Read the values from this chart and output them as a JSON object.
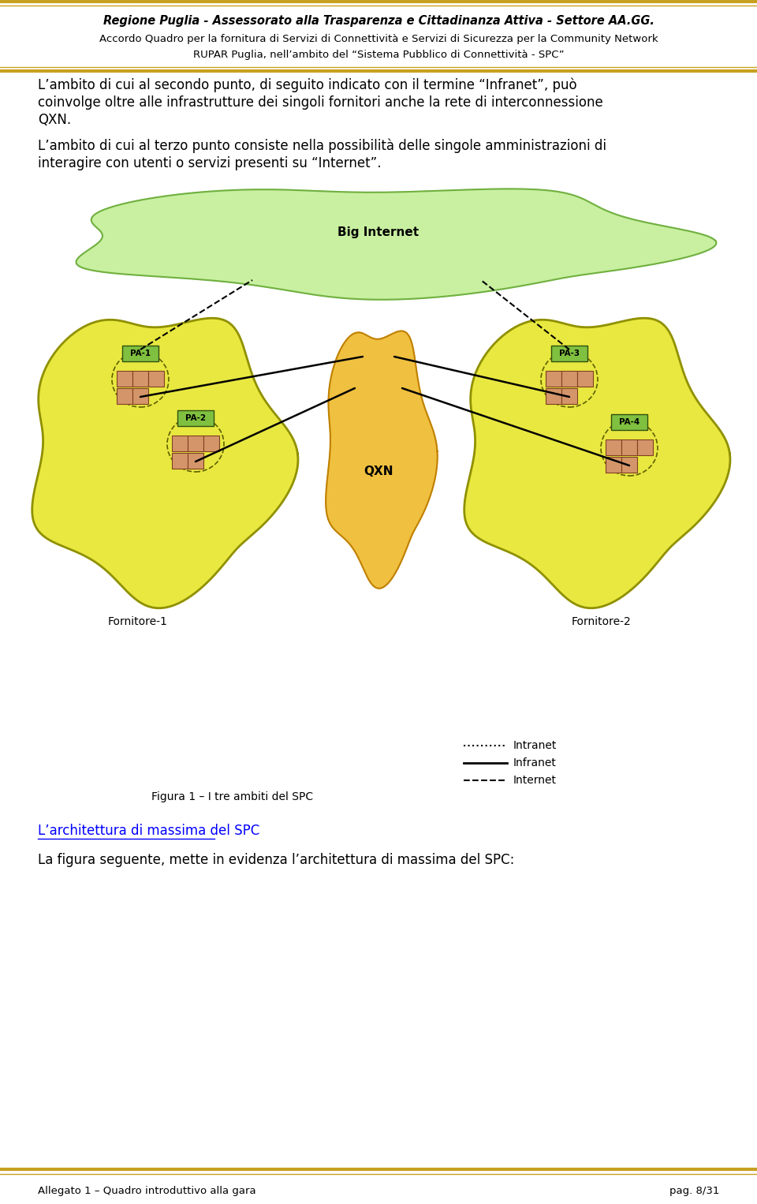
{
  "header_line1": "Regione Puglia - Assessorato alla Trasparenza e Cittadinanza Attiva - Settore AA.GG.",
  "header_line2": "Accordo Quadro per la fornitura di Servizi di Connettività e Servizi di Sicurezza per la Community Network",
  "header_line3": "RUPAR Puglia, nell’ambito del “Sistema Pubblico di Connettività - SPC”",
  "para1_line1": "L’ambito di cui al secondo punto, di seguito indicato con il termine “Infranet”, può",
  "para1_line2": "coinvolge oltre alle infrastrutture dei singoli fornitori anche la rete di interconnessione",
  "para1_line3": "QXN.",
  "para2_line1": "L’ambito di cui al terzo punto consiste nella possibilità delle singole amministrazioni di",
  "para2_line2": "interagire con utenti o servizi presenti su “Internet”.",
  "big_internet_label": "Big Internet",
  "qxn_label": "QXN",
  "fornitore1_label": "Fornitore-1",
  "fornitore2_label": "Fornitore-2",
  "pa1_label": "PA-1",
  "pa2_label": "PA-2",
  "pa3_label": "PA-3",
  "pa4_label": "PA-4",
  "legend_intranet": "Intranet",
  "legend_infranet": "Infranet",
  "legend_internet": "Internet",
  "figura_caption": "Figura 1 – I tre ambiti del SPC",
  "section_title": "L’architettura di massima del SPC",
  "para3": "La figura seguente, mette in evidenza l’architettura di massima del SPC:",
  "footer_left": "Allegato 1 – Quadro introduttivo alla gara",
  "footer_right": "pag. 8/31",
  "cloud_yellow": "#e8e840",
  "cloud_green_light": "#c8f0a0",
  "qxn_yellow": "#f0c040",
  "box_salmon": "#d4956a",
  "pa_box_green": "#80c040",
  "bg_white": "#ffffff",
  "border_gold": "#c8a020",
  "line_black": "#000000"
}
